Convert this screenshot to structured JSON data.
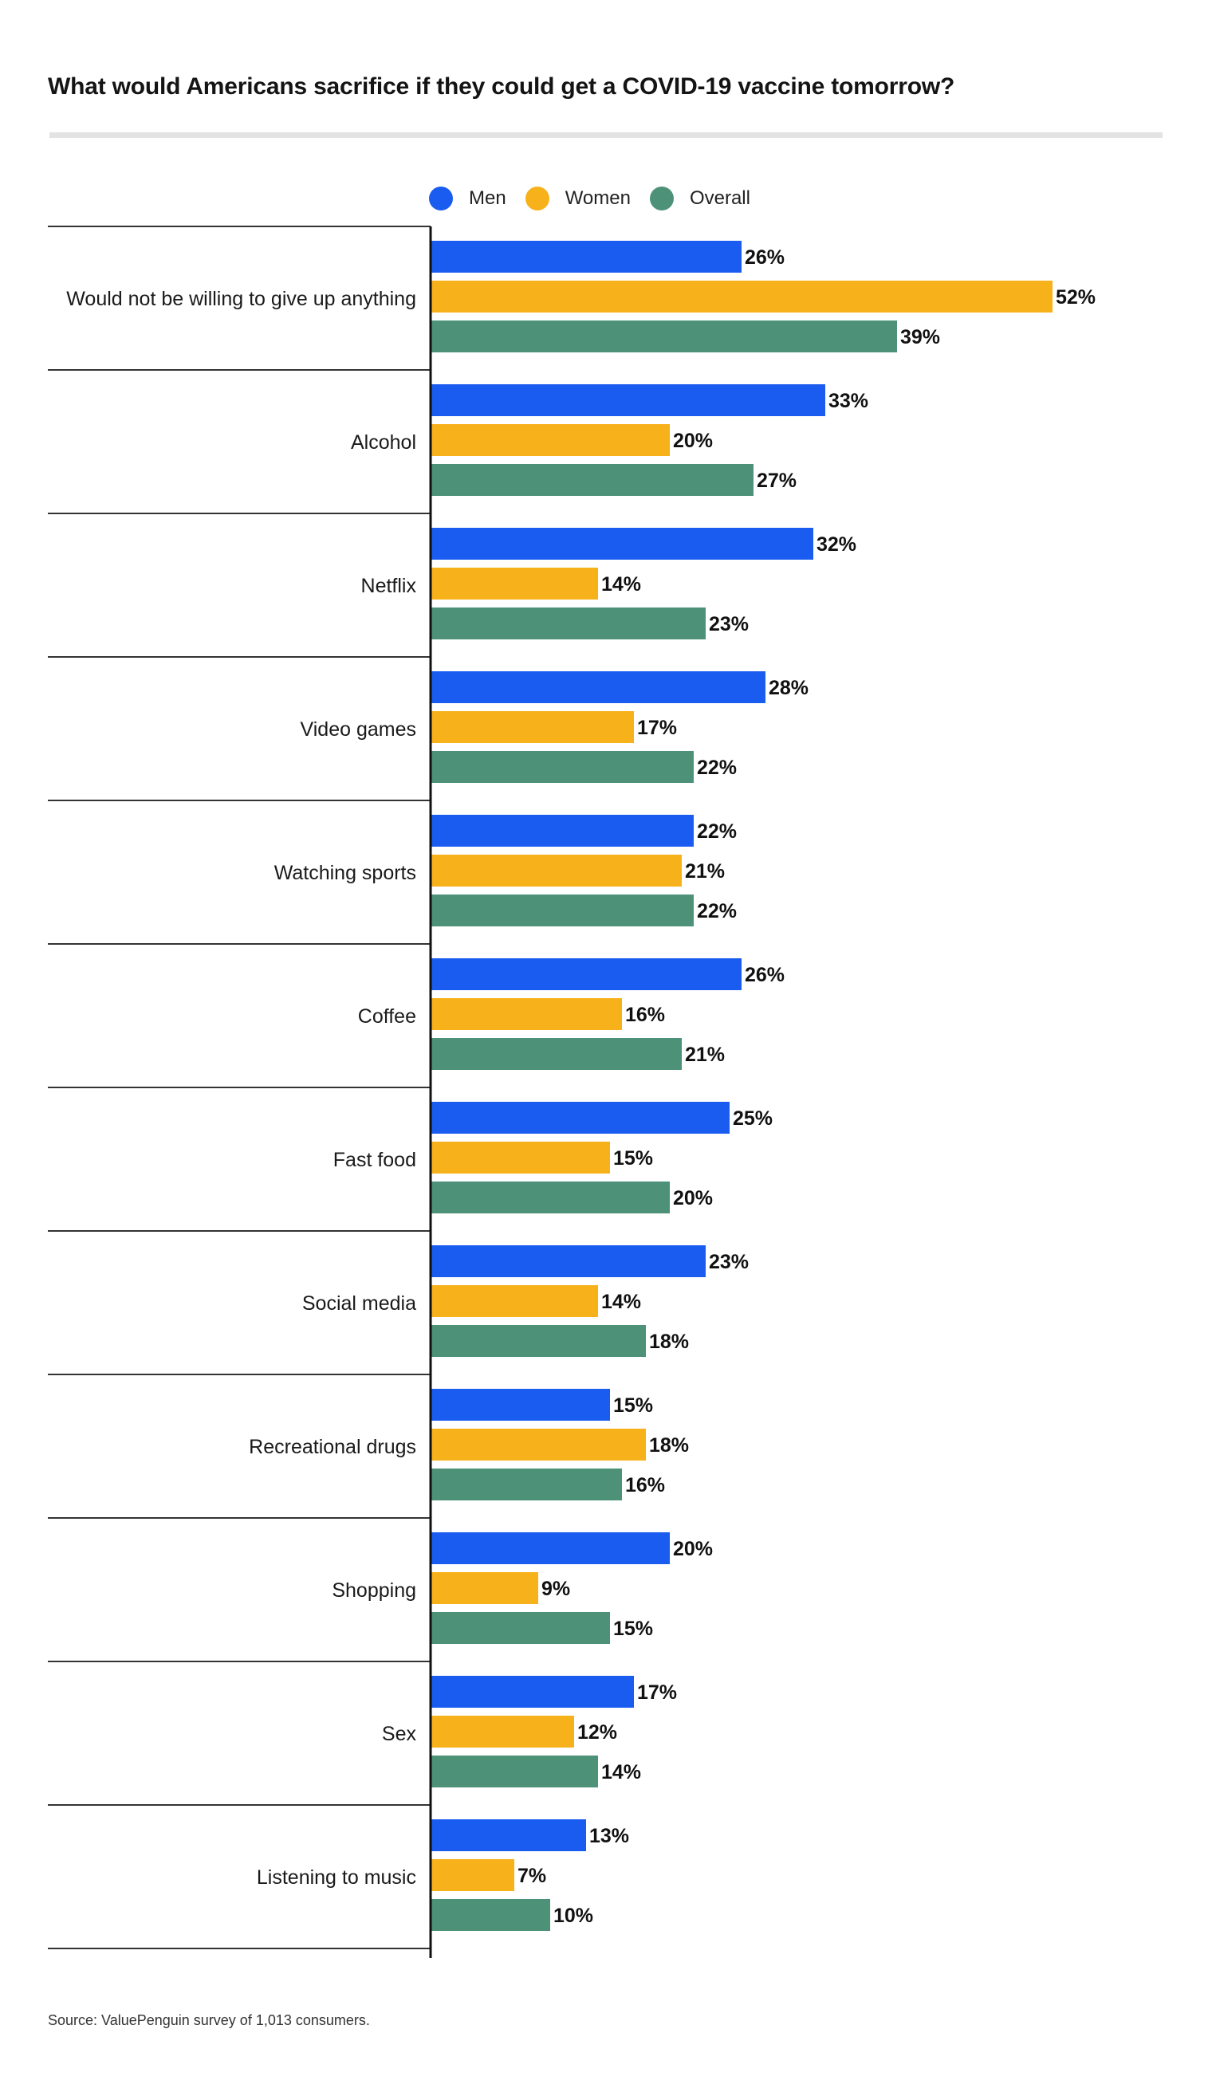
{
  "title": "What would Americans sacrifice if they could get a COVID-19 vaccine tomorrow?",
  "source": "Source: ValuePenguin survey of 1,013 consumers.",
  "legend": [
    {
      "label": "Men",
      "color": "#1a5cf0"
    },
    {
      "label": "Women",
      "color": "#f7b11b"
    },
    {
      "label": "Overall",
      "color": "#4d9278"
    }
  ],
  "chart_data": {
    "type": "bar",
    "orientation": "horizontal",
    "categories": [
      "Would not be willing to give up anything",
      "Alcohol",
      "Netflix",
      "Video games",
      "Watching sports",
      "Coffee",
      "Fast food",
      "Social media",
      "Recreational drugs",
      "Shopping",
      "Sex",
      "Listening to music"
    ],
    "series": [
      {
        "name": "Men",
        "color": "#1a5cf0",
        "values": [
          26,
          33,
          32,
          28,
          22,
          26,
          25,
          23,
          15,
          20,
          17,
          13
        ]
      },
      {
        "name": "Women",
        "color": "#f7b11b",
        "values": [
          52,
          20,
          14,
          17,
          21,
          16,
          15,
          14,
          18,
          9,
          12,
          7
        ]
      },
      {
        "name": "Overall",
        "color": "#4d9278",
        "values": [
          39,
          27,
          23,
          22,
          22,
          21,
          20,
          18,
          16,
          15,
          14,
          10
        ]
      }
    ],
    "value_suffix": "%",
    "xlim": [
      0,
      52
    ],
    "grid": false,
    "legend_position": "top"
  }
}
